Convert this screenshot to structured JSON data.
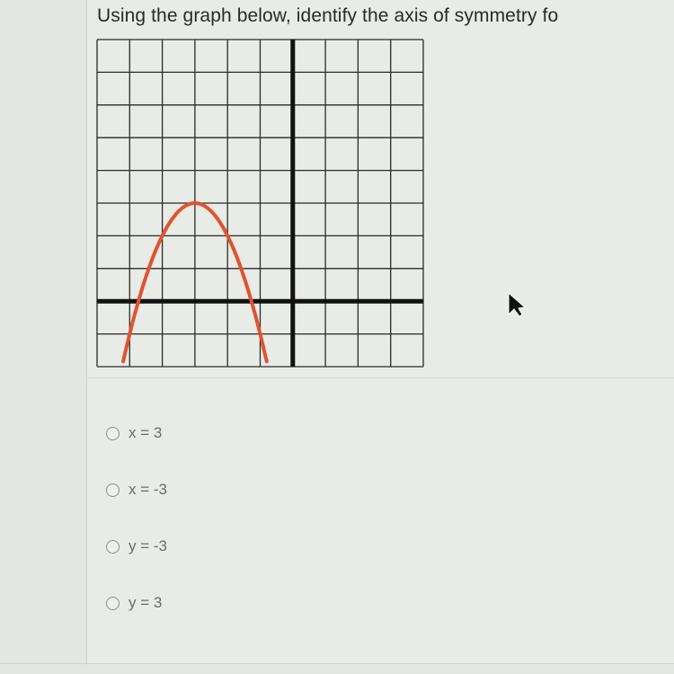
{
  "question": "Using the graph below, identify the axis of symmetry fo",
  "options": [
    "x = 3",
    "x = -3",
    "y = -3",
    "y = 3"
  ]
}
